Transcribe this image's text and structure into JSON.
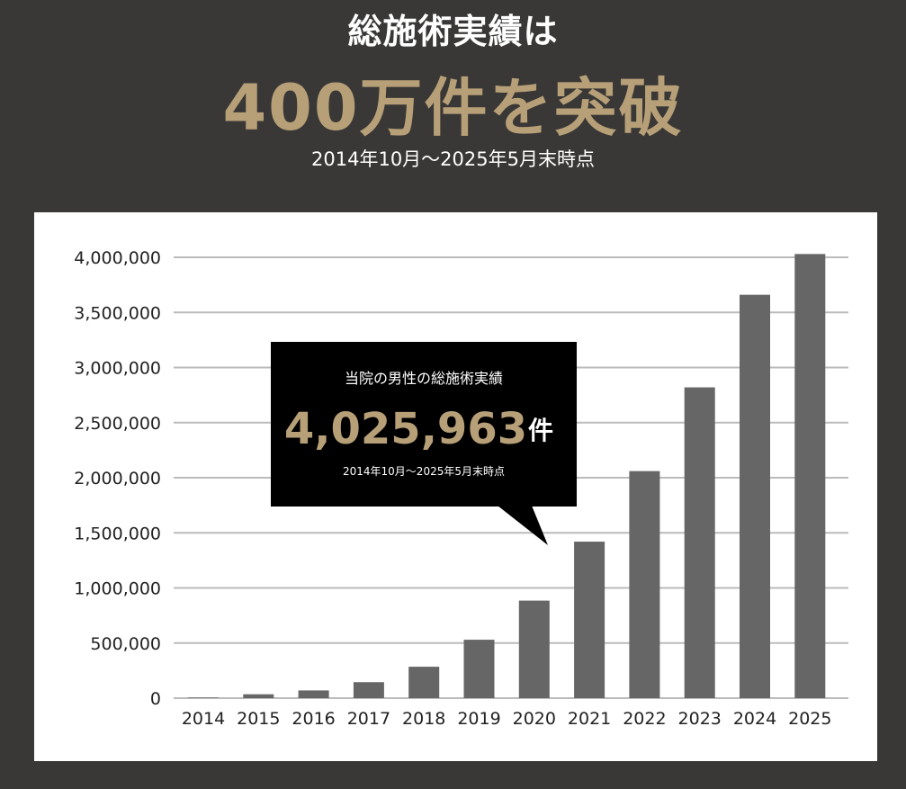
{
  "header": {
    "headline": "総施術実績は",
    "big": "400万件を突破",
    "sub": "2014年10月〜2025年5月末時点"
  },
  "callout": {
    "title": "当院の男性の総施術実績",
    "number": "4,025,963",
    "unit": "件",
    "note": "2014年10月〜2025年5月末時点"
  },
  "colors": {
    "background": "#3a3836",
    "gold": "#b7a078",
    "bar": "#666666",
    "grid": "#bbbbbb",
    "callout": "#000000"
  },
  "chart_data": {
    "type": "bar",
    "title": "",
    "xlabel": "",
    "ylabel": "",
    "categories": [
      "2014",
      "2015",
      "2016",
      "2017",
      "2018",
      "2019",
      "2020",
      "2021",
      "2022",
      "2023",
      "2024",
      "2025"
    ],
    "values": [
      5000,
      35000,
      70000,
      145000,
      285000,
      530000,
      885000,
      1420000,
      2060000,
      2820000,
      3660000,
      4030000
    ],
    "ylim": [
      0,
      4000000
    ],
    "yticks": [
      {
        "value": 0,
        "label": "0"
      },
      {
        "value": 500000,
        "label": "500,000"
      },
      {
        "value": 1000000,
        "label": "1,000,000"
      },
      {
        "value": 1500000,
        "label": "1,500,000"
      },
      {
        "value": 2000000,
        "label": "2,000,000"
      },
      {
        "value": 2500000,
        "label": "2,500,000"
      },
      {
        "value": 3000000,
        "label": "3,000,000"
      },
      {
        "value": 3500000,
        "label": "3,500,000"
      },
      {
        "value": 4000000,
        "label": "4,000,000"
      }
    ],
    "grid": true,
    "legend": "none"
  }
}
